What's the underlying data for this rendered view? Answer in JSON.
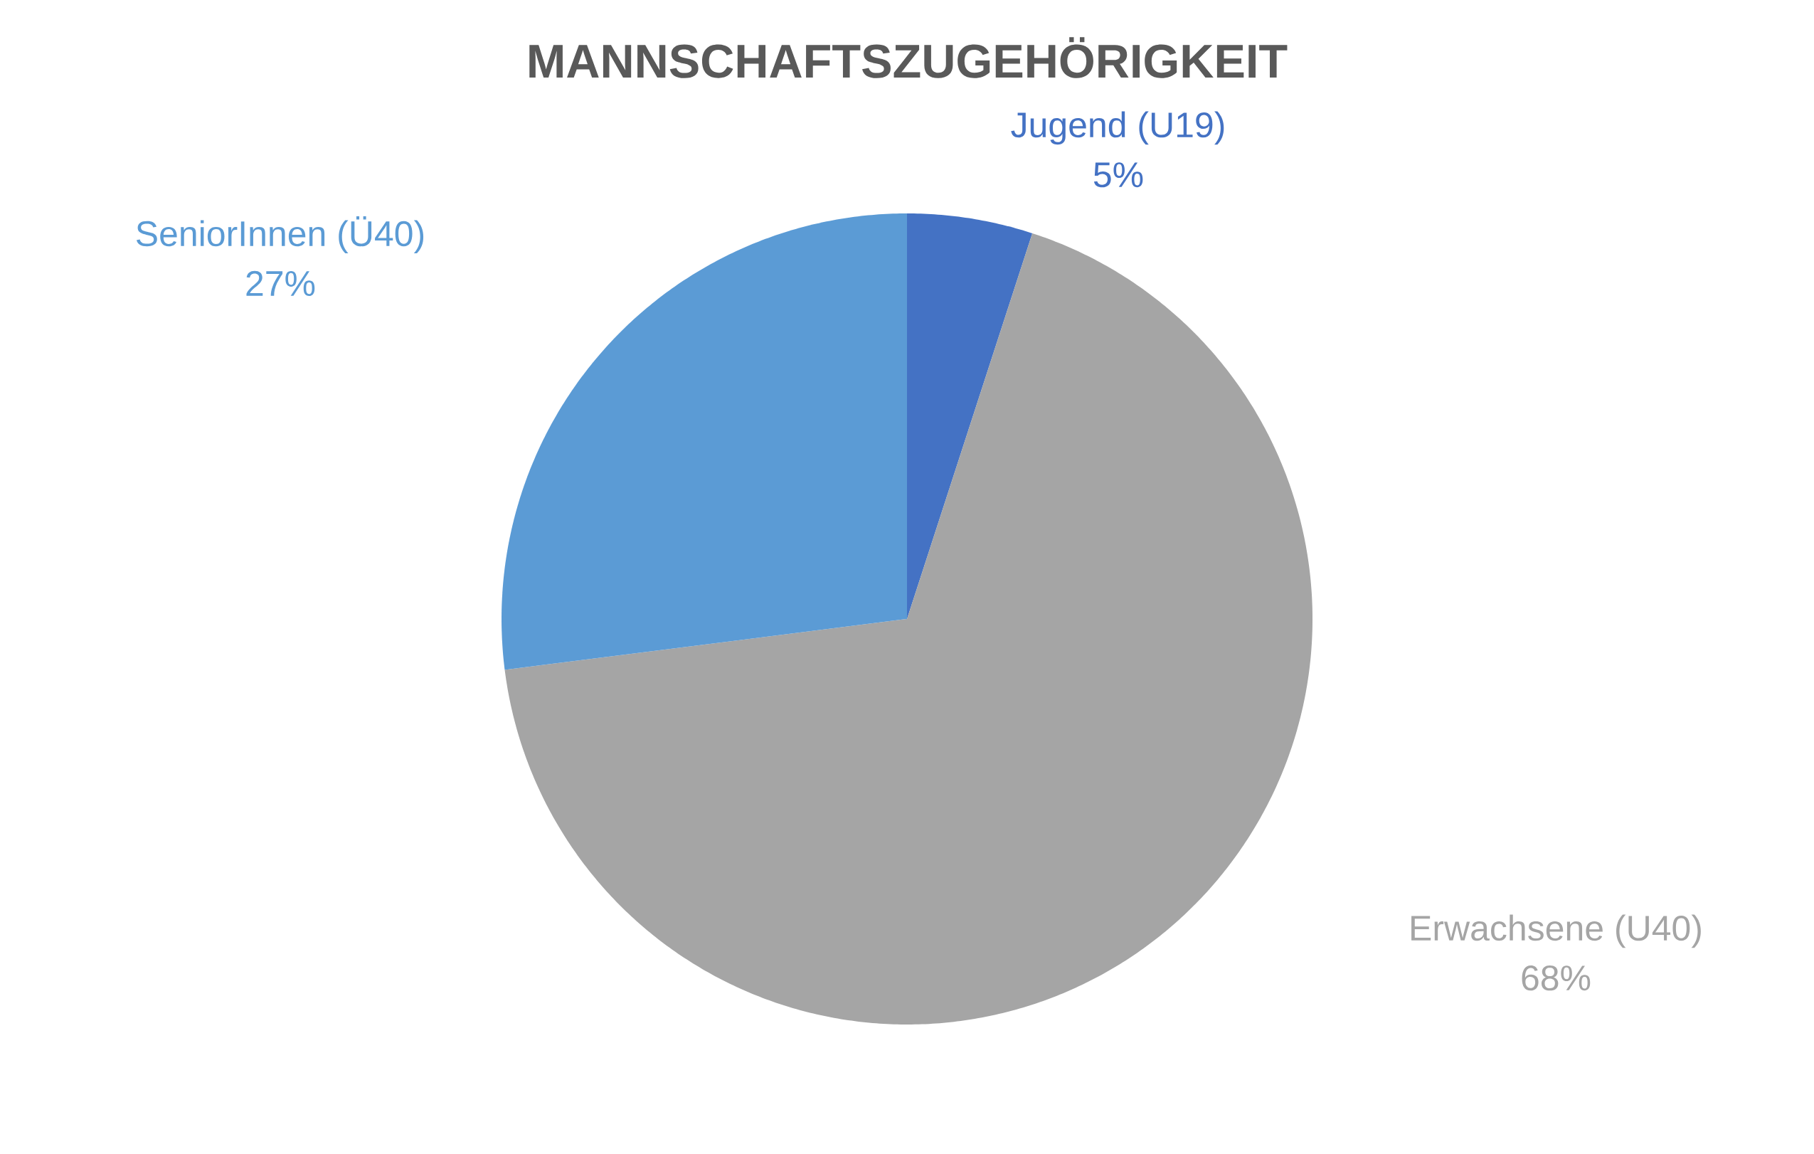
{
  "chart_data": {
    "type": "pie",
    "title": "MANNSCHAFTSZUGEHÖRIGKEIT",
    "categories": [
      "Jugend (U19)",
      "Erwachsene (U40)",
      "SeniorInnen (Ü40)"
    ],
    "values": [
      5,
      68,
      27
    ],
    "colors": [
      "#4472c4",
      "#a5a5a5",
      "#5b9bd5"
    ],
    "value_labels": [
      "5%",
      "68%",
      "27%"
    ]
  }
}
